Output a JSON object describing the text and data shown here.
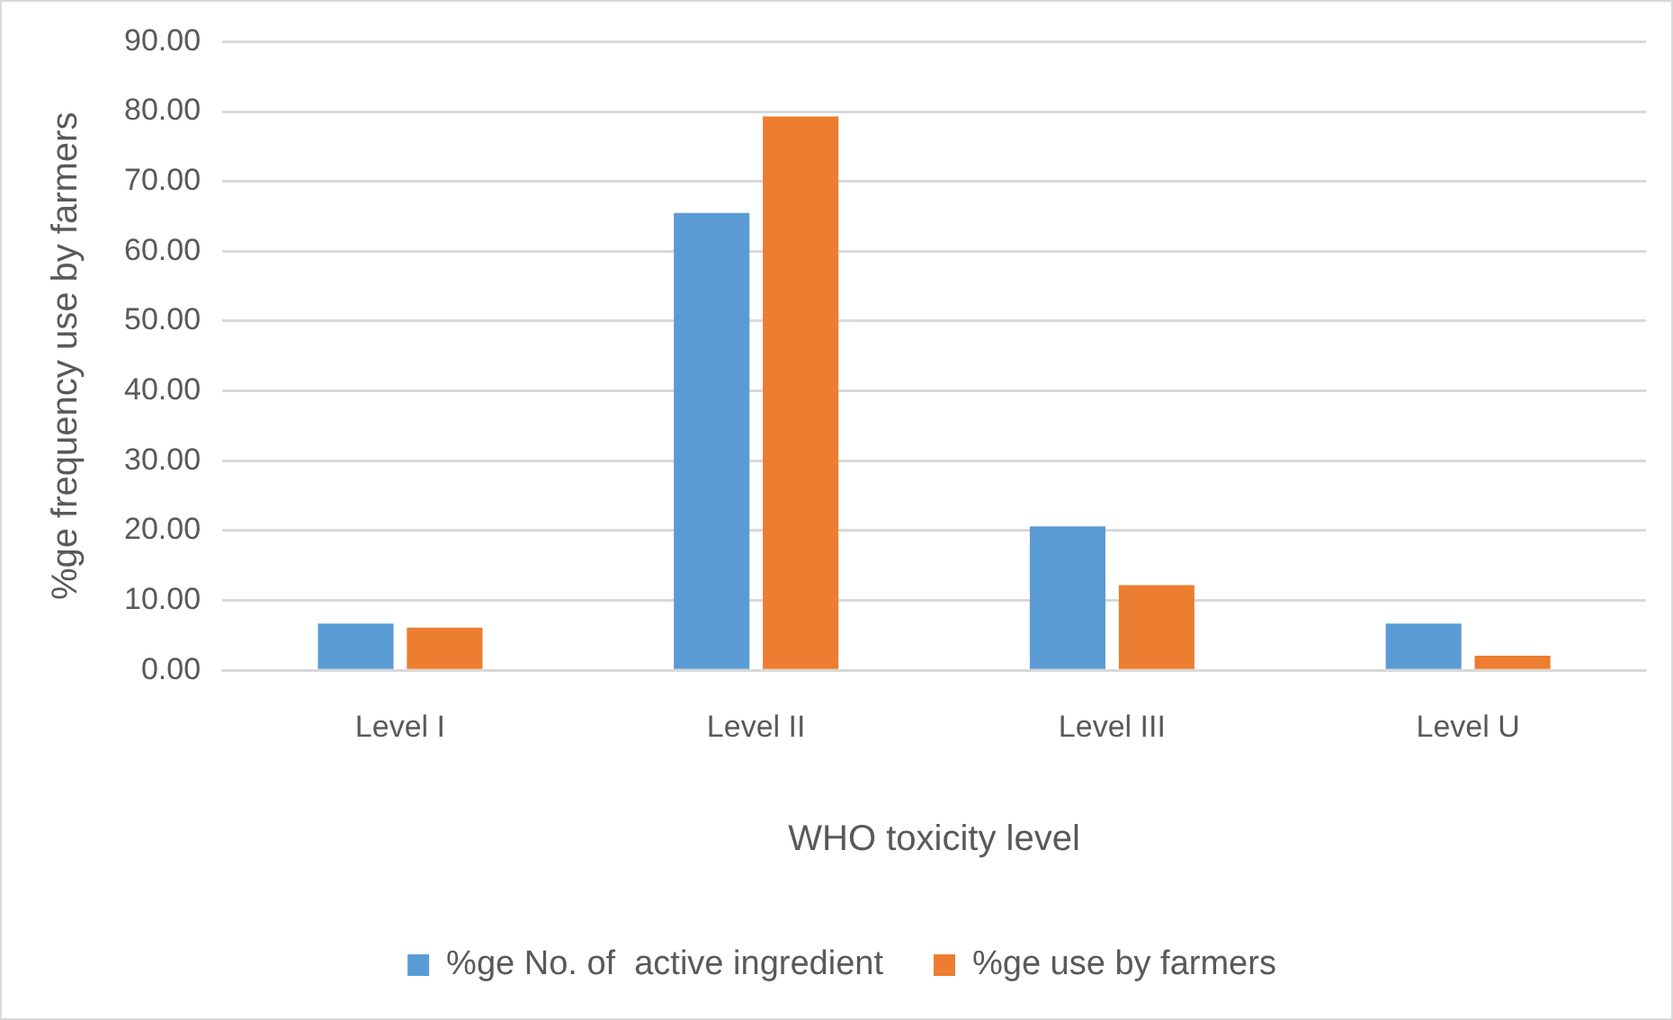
{
  "chart_data": {
    "type": "bar",
    "xlabel": "WHO toxicity level",
    "ylabel": "%ge frequency use by farmers",
    "categories": [
      "Level I",
      "Level II",
      "Level III",
      "Level U"
    ],
    "series": [
      {
        "name": "%ge No. of  active ingredient",
        "color": "#5b9bd5",
        "values": [
          6.7,
          65.5,
          20.6,
          6.7
        ]
      },
      {
        "name": "%ge use by farmers",
        "color": "#ed7d31",
        "values": [
          6.1,
          79.3,
          12.2,
          2.1
        ]
      }
    ],
    "ylim": [
      0,
      90
    ],
    "yticks": [
      {
        "value": 0,
        "label": "0.00"
      },
      {
        "value": 10,
        "label": "10.00"
      },
      {
        "value": 20,
        "label": "20.00"
      },
      {
        "value": 30,
        "label": "30.00"
      },
      {
        "value": 40,
        "label": "40.00"
      },
      {
        "value": 50,
        "label": "50.00"
      },
      {
        "value": 60,
        "label": "60.00"
      },
      {
        "value": 70,
        "label": "70.00"
      },
      {
        "value": 80,
        "label": "80.00"
      },
      {
        "value": 90,
        "label": "90.00"
      }
    ],
    "grid": "y",
    "legend": "bottom"
  }
}
